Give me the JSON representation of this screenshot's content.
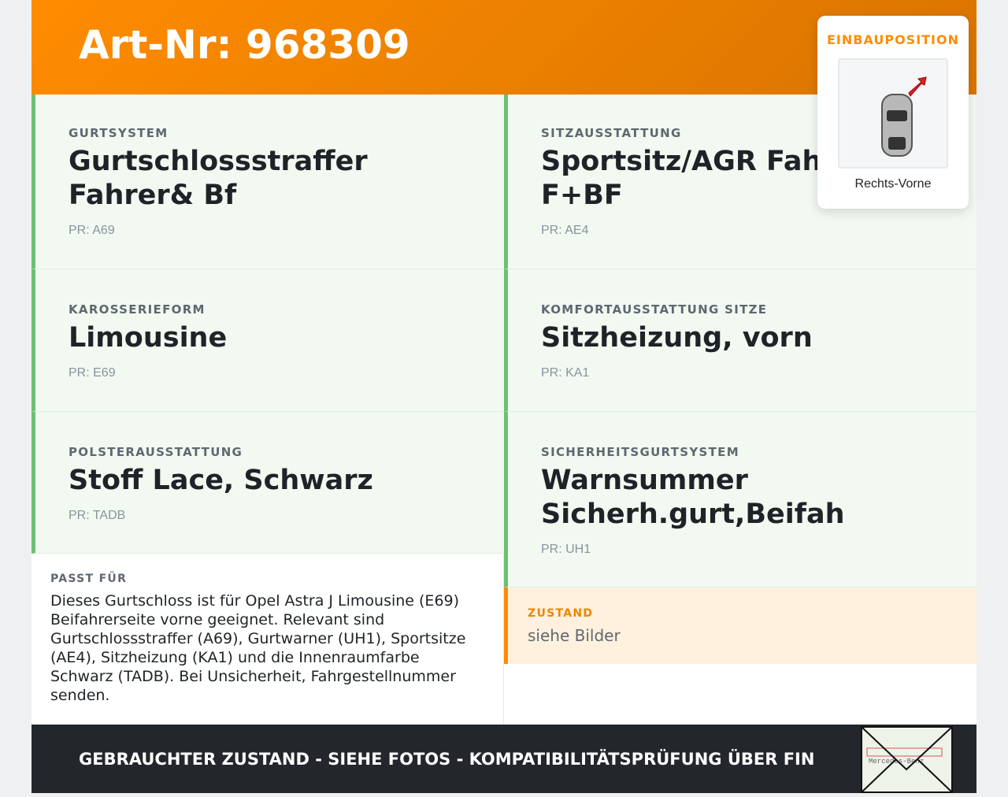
{
  "header": {
    "title": "Art-Nr: 968309"
  },
  "position": {
    "label": "EINBAUPOSITION",
    "caption": "Rechts-Vorne",
    "icon": "car-top-view-with-arrow"
  },
  "cells": [
    {
      "label": "GURTSYSTEM",
      "value": "Gurtschlossstraffer Fahrer& Bf",
      "pr": "PR: A69"
    },
    {
      "label": "SITZAUSSTATTUNG",
      "value": "Sportsitz/AGR Fahrer F+BF",
      "pr": "PR: AE4"
    },
    {
      "label": "KAROSSERIEFORM",
      "value": "Limousine",
      "pr": "PR: E69"
    },
    {
      "label": "KOMFORTAUSSTATTUNG SITZE",
      "value": "Sitzheizung, vorn",
      "pr": "PR: KA1"
    },
    {
      "label": "POLSTERAUSSTATTUNG",
      "value": "Stoff Lace, Schwarz",
      "pr": "PR: TADB"
    },
    {
      "label": "SICHERHEITSGURTSYSTEM",
      "value": "Warnsummer Sicherh.gurt,Beifah",
      "pr": "PR: UH1"
    }
  ],
  "fit": {
    "label": "PASST FÜR",
    "text": "Dieses Gurtschloss ist für Opel Astra J Limousine (E69) Beifahrerseite vorne geeignet. Relevant sind Gurtschlossstraffer (A69), Gurtwarner (UH1), Sportsitze (AE4), Sitzheizung (KA1) und die Innenraumfarbe Schwarz (TADB). Bei Unsicherheit, Fahrgestellnummer senden."
  },
  "condition": {
    "label": "ZUSTAND",
    "value": "siehe Bilder"
  },
  "footer": {
    "text": "GEBRAUCHTER ZUSTAND - SIEHE FOTOS - KOMPATIBILITÄTSPRÜFUNG ÜBER FIN",
    "envelope_text": "Mercedes-Benz"
  },
  "colors": {
    "accent": "#ff8c00",
    "green": "#6cc070",
    "dark": "#23262b"
  }
}
